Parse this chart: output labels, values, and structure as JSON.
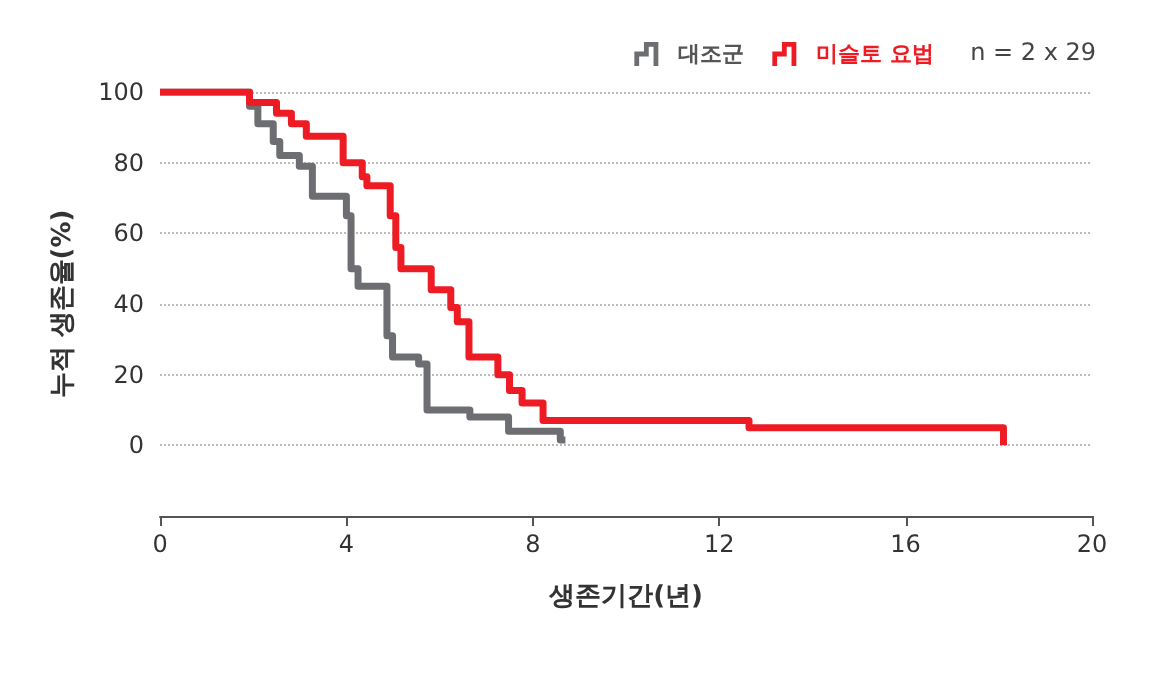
{
  "chart_data": {
    "type": "step",
    "xlabel": "생존기간(년)",
    "ylabel": "누적 생존율(%)",
    "annotations": [
      "n = 2 x 29"
    ],
    "xlim": [
      0,
      20
    ],
    "xticks": [
      0,
      4,
      8,
      12,
      16,
      20
    ],
    "ylim": [
      -20,
      100
    ],
    "yticks": [
      0,
      20,
      40,
      60,
      80,
      100
    ],
    "grid": "y",
    "legend": "top right",
    "series": [
      {
        "name": "대조군",
        "color": "#6d6e71",
        "x": [
          0,
          1.92,
          2.1,
          2.43,
          2.57,
          2.99,
          3.27,
          4.0,
          4.1,
          4.25,
          4.87,
          4.99,
          5.55,
          5.73,
          6.65,
          7.48,
          8.59,
          8.7
        ],
        "values": [
          100,
          96,
          91,
          86,
          82,
          79,
          70.5,
          65,
          50,
          45,
          31,
          25,
          23,
          10,
          8,
          4,
          1.5,
          1.5
        ]
      },
      {
        "name": "미슬토 요법",
        "color": "#ed1c24",
        "x": [
          0,
          1.92,
          2.5,
          2.82,
          3.14,
          3.93,
          4.34,
          4.44,
          4.94,
          5.06,
          5.17,
          5.82,
          6.24,
          6.38,
          6.63,
          7.25,
          7.5,
          7.77,
          8.22,
          12.64,
          18.1,
          18.1
        ],
        "values": [
          100,
          97,
          94,
          91,
          87.5,
          80,
          76,
          73.5,
          65,
          56,
          50,
          44,
          39,
          35,
          25,
          20,
          15.5,
          12,
          7,
          5,
          5,
          0
        ]
      }
    ]
  }
}
